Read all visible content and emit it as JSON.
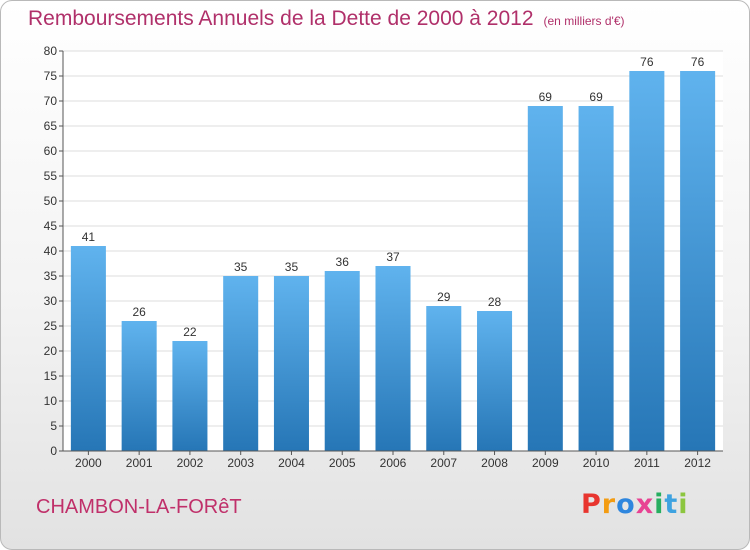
{
  "header": {
    "title": "Remboursements Annuels de la Dette de 2000 à 2012",
    "subtitle": "(en milliers d'€)"
  },
  "footer": {
    "commune": "CHAMBON-LA-FORêT",
    "brand_letters": [
      {
        "char": "P",
        "color": "#e8352f"
      },
      {
        "char": "r",
        "color": "#f39c12"
      },
      {
        "char": "o",
        "color": "#2e86de"
      },
      {
        "char": "x",
        "color": "#e84393"
      },
      {
        "char": "i",
        "color": "#27ae60"
      },
      {
        "char": "t",
        "color": "#3ea2e0"
      },
      {
        "char": "i",
        "color": "#8cc63f"
      }
    ]
  },
  "colors": {
    "bar_light": "#60b3ee",
    "bar_dark": "#2676b6",
    "grid": "#dddddd",
    "axis": "#555555",
    "title": "#b0306a"
  },
  "chart_data": {
    "type": "bar",
    "title": "Remboursements Annuels de la Dette de 2000 à 2012",
    "subtitle": "(en milliers d'€)",
    "categories": [
      "2000",
      "2001",
      "2002",
      "2003",
      "2004",
      "2005",
      "2006",
      "2007",
      "2008",
      "2009",
      "2010",
      "2011",
      "2012"
    ],
    "values": [
      41,
      26,
      22,
      35,
      35,
      36,
      37,
      29,
      28,
      69,
      69,
      76,
      76
    ],
    "ylim": [
      0,
      80
    ],
    "yticks": [
      0,
      5,
      10,
      15,
      20,
      25,
      30,
      35,
      40,
      45,
      50,
      55,
      60,
      65,
      70,
      75,
      80
    ],
    "xlabel": "",
    "ylabel": "",
    "grid": true,
    "data_labels": true
  }
}
